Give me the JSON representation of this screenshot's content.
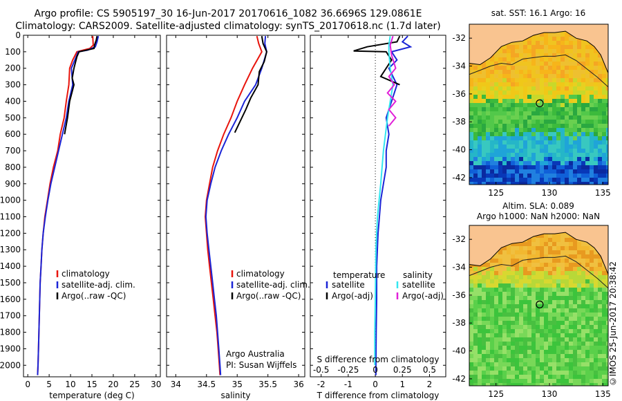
{
  "header": {
    "line1": "Argo profile: CS 5905197_30 16-Jun-2017 20170616_1082 36.6696S 129.0861E",
    "line2": "Climatology: CARS2009. Satellite-adjusted climatology: synTS_20170618.nc (1.7d later)"
  },
  "colors": {
    "climatology": "#e8140c",
    "satellite": "#1a24d6",
    "argo": "#000000",
    "satellite_s": "#33e6f0",
    "argo_s": "#e020d8"
  },
  "chart_data": [
    {
      "type": "line",
      "xlabel": "temperature (deg C)",
      "ylim": [
        2070,
        0
      ],
      "xlim": [
        -1,
        31
      ],
      "yticks": [
        0,
        100,
        200,
        300,
        400,
        500,
        600,
        700,
        800,
        900,
        1000,
        1100,
        1200,
        1300,
        1400,
        1500,
        1600,
        1700,
        1800,
        1900,
        2000
      ],
      "xticks": [
        0,
        5,
        10,
        15,
        20,
        25,
        30
      ],
      "legend": [
        "climatology",
        "satellite-adj. clim.",
        "Argo(..raw -QC)"
      ],
      "series": [
        {
          "name": "climatology",
          "color": "#e8140c",
          "values": [
            [
              15.2,
              5
            ],
            [
              15.3,
              60
            ],
            [
              14.5,
              80
            ],
            [
              11.5,
              100
            ],
            [
              10.5,
              150
            ],
            [
              9.8,
              200
            ],
            [
              9.6,
              300
            ],
            [
              9.0,
              400
            ],
            [
              8.5,
              500
            ],
            [
              7.6,
              600
            ],
            [
              7.0,
              700
            ],
            [
              6.0,
              800
            ],
            [
              5.2,
              900
            ],
            [
              4.6,
              1000
            ],
            [
              4.0,
              1100
            ],
            [
              3.6,
              1200
            ],
            [
              3.3,
              1300
            ],
            [
              3.1,
              1400
            ],
            [
              2.9,
              1500
            ],
            [
              2.8,
              1600
            ],
            [
              2.7,
              1700
            ],
            [
              2.6,
              1800
            ],
            [
              2.5,
              1900
            ],
            [
              2.4,
              2000
            ],
            [
              2.3,
              2060
            ]
          ]
        },
        {
          "name": "satellite-adj. clim.",
          "color": "#1a24d6",
          "values": [
            [
              16.5,
              5
            ],
            [
              16.2,
              40
            ],
            [
              15.8,
              70
            ],
            [
              14.0,
              90
            ],
            [
              11.8,
              100
            ],
            [
              11.0,
              150
            ],
            [
              10.2,
              200
            ],
            [
              10.5,
              300
            ],
            [
              9.6,
              400
            ],
            [
              9.0,
              500
            ],
            [
              8.1,
              600
            ],
            [
              7.2,
              700
            ],
            [
              6.3,
              800
            ],
            [
              5.4,
              900
            ],
            [
              4.7,
              1000
            ],
            [
              4.1,
              1100
            ],
            [
              3.6,
              1200
            ],
            [
              3.3,
              1300
            ],
            [
              3.1,
              1400
            ],
            [
              2.9,
              1500
            ],
            [
              2.8,
              1600
            ],
            [
              2.7,
              1700
            ],
            [
              2.6,
              1800
            ],
            [
              2.5,
              1900
            ],
            [
              2.4,
              2000
            ],
            [
              2.3,
              2060
            ]
          ]
        },
        {
          "name": "Argo(..raw -QC)",
          "color": "#000000",
          "values": [
            [
              16.2,
              5
            ],
            [
              16.0,
              30
            ],
            [
              15.6,
              60
            ],
            [
              15.5,
              80
            ],
            [
              12.0,
              100
            ],
            [
              11.5,
              130
            ],
            [
              10.8,
              200
            ],
            [
              10.4,
              260
            ],
            [
              10.8,
              300
            ],
            [
              9.8,
              400
            ],
            [
              9.3,
              500
            ],
            [
              8.6,
              600
            ]
          ]
        }
      ]
    },
    {
      "type": "line",
      "xlabel": "salinity",
      "ylim": [
        2070,
        0
      ],
      "xlim": [
        33.85,
        36.1
      ],
      "xticks": [
        34,
        34.5,
        35,
        35.5,
        36
      ],
      "legend": [
        "climatology",
        "satellite-adj. clim.",
        "Argo(..raw -QC)"
      ],
      "annotation": [
        "Argo Australia",
        "PI: Susan Wijffels"
      ],
      "series": [
        {
          "name": "climatology",
          "color": "#e8140c",
          "values": [
            [
              35.32,
              5
            ],
            [
              35.35,
              50
            ],
            [
              35.4,
              100
            ],
            [
              35.25,
              200
            ],
            [
              35.12,
              300
            ],
            [
              35.0,
              400
            ],
            [
              34.9,
              500
            ],
            [
              34.78,
              600
            ],
            [
              34.68,
              700
            ],
            [
              34.6,
              800
            ],
            [
              34.55,
              900
            ],
            [
              34.5,
              1000
            ],
            [
              34.48,
              1100
            ],
            [
              34.5,
              1200
            ],
            [
              34.52,
              1300
            ],
            [
              34.55,
              1400
            ],
            [
              34.58,
              1500
            ],
            [
              34.61,
              1600
            ],
            [
              34.64,
              1700
            ],
            [
              34.67,
              1800
            ],
            [
              34.69,
              1900
            ],
            [
              34.71,
              2000
            ],
            [
              34.72,
              2060
            ]
          ]
        },
        {
          "name": "satellite-adj. clim.",
          "color": "#1a24d6",
          "values": [
            [
              35.46,
              5
            ],
            [
              35.45,
              50
            ],
            [
              35.48,
              100
            ],
            [
              35.4,
              200
            ],
            [
              35.3,
              300
            ],
            [
              35.12,
              400
            ],
            [
              35.0,
              500
            ],
            [
              34.86,
              600
            ],
            [
              34.74,
              700
            ],
            [
              34.64,
              800
            ],
            [
              34.57,
              900
            ],
            [
              34.51,
              1000
            ],
            [
              34.49,
              1100
            ],
            [
              34.51,
              1200
            ],
            [
              34.54,
              1300
            ],
            [
              34.57,
              1400
            ],
            [
              34.6,
              1500
            ],
            [
              34.63,
              1600
            ],
            [
              34.66,
              1700
            ],
            [
              34.68,
              1800
            ],
            [
              34.7,
              1900
            ],
            [
              34.72,
              2000
            ],
            [
              34.73,
              2060
            ]
          ]
        },
        {
          "name": "Argo(..raw -QC)",
          "color": "#000000",
          "values": [
            [
              35.4,
              5
            ],
            [
              35.42,
              50
            ],
            [
              35.48,
              100
            ],
            [
              35.44,
              160
            ],
            [
              35.36,
              220
            ],
            [
              35.34,
              300
            ],
            [
              35.22,
              380
            ],
            [
              35.14,
              450
            ],
            [
              35.05,
              520
            ],
            [
              34.96,
              590
            ]
          ]
        }
      ]
    },
    {
      "type": "line",
      "xlabel": "T difference from climatology",
      "x2label": "S difference from climatology",
      "ylim": [
        2070,
        0
      ],
      "xlim": [
        -2.4,
        2.6
      ],
      "xticks": [
        -2,
        -1,
        0,
        1,
        2
      ],
      "x2ticks": [
        "-0.5",
        "-0.25",
        "0",
        "0.25",
        "0.5"
      ],
      "legend_t": {
        "title": "temperature",
        "items": [
          "satellite",
          "Argo(-adj)"
        ]
      },
      "legend_s": {
        "title": "salinity",
        "items": [
          "satellite",
          "Argo(-adj)"
        ]
      },
      "series": [
        {
          "name": "T satellite",
          "color": "#1a24d6",
          "values": [
            [
              1.2,
              5
            ],
            [
              1.0,
              40
            ],
            [
              1.3,
              70
            ],
            [
              0.6,
              100
            ],
            [
              0.8,
              150
            ],
            [
              0.5,
              200
            ],
            [
              0.8,
              300
            ],
            [
              0.6,
              400
            ],
            [
              0.4,
              500
            ],
            [
              0.5,
              600
            ],
            [
              0.4,
              700
            ],
            [
              0.4,
              800
            ],
            [
              0.3,
              900
            ],
            [
              0.2,
              1000
            ],
            [
              0.15,
              1100
            ],
            [
              0.1,
              1200
            ],
            [
              0.05,
              1400
            ],
            [
              0.05,
              1600
            ],
            [
              0.03,
              1800
            ],
            [
              0.02,
              2000
            ],
            [
              0.02,
              2060
            ]
          ]
        },
        {
          "name": "T Argo(-adj)",
          "color": "#000000",
          "values": [
            [
              0.9,
              5
            ],
            [
              0.8,
              40
            ],
            [
              -0.3,
              70
            ],
            [
              -0.8,
              95
            ],
            [
              0.4,
              100
            ],
            [
              0.6,
              150
            ],
            [
              0.2,
              250
            ],
            [
              0.9,
              300
            ]
          ]
        },
        {
          "name": "S satellite",
          "color": "#33e6f0",
          "values": [
            [
              0.55,
              5
            ],
            [
              0.5,
              60
            ],
            [
              0.5,
              100
            ],
            [
              0.55,
              200
            ],
            [
              0.65,
              300
            ],
            [
              0.45,
              500
            ],
            [
              0.3,
              700
            ],
            [
              0.2,
              900
            ],
            [
              0.08,
              1100
            ],
            [
              0.02,
              1300
            ],
            [
              0.0,
              1600
            ],
            [
              -0.02,
              1800
            ],
            [
              -0.02,
              2000
            ]
          ]
        },
        {
          "name": "S Argo(-adj)",
          "color": "#e020d8",
          "values": [
            [
              0.65,
              5
            ],
            [
              0.55,
              60
            ],
            [
              0.6,
              120
            ],
            [
              0.75,
              200
            ],
            [
              0.5,
              250
            ],
            [
              0.7,
              300
            ],
            [
              0.45,
              350
            ],
            [
              0.75,
              400
            ],
            [
              0.5,
              450
            ],
            [
              0.75,
              500
            ],
            [
              0.5,
              550
            ]
          ]
        }
      ]
    }
  ],
  "maps": {
    "top": {
      "title": "sat. SST: 16.1 Argo: 16",
      "xticks": [
        "125",
        "130",
        "135"
      ],
      "yticks": [
        "-32",
        "-34",
        "-36",
        "-38",
        "-40",
        "-42"
      ],
      "marker": {
        "lon": 129.09,
        "lat": -36.67
      }
    },
    "bottom": {
      "title1": "Altim. SLA: 0.089",
      "title2": "Argo h1000: NaN h2000: NaN",
      "xticks": [
        "125",
        "130",
        "135"
      ],
      "yticks": [
        "-32",
        "-34",
        "-36",
        "-38",
        "-40",
        "-42"
      ],
      "marker": {
        "lon": 129.09,
        "lat": -36.67
      }
    }
  },
  "footer": {
    "imos": "©IMOS 25-Jun-2017 20:38:42"
  }
}
